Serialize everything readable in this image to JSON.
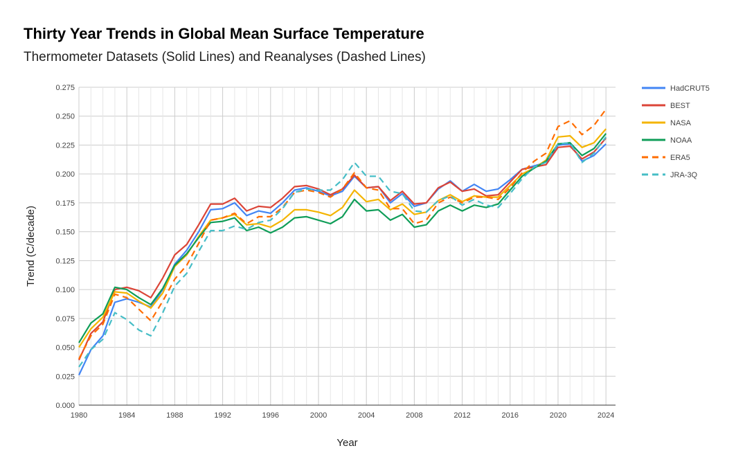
{
  "chart_data": {
    "type": "line",
    "title": "Thirty Year Trends in Global Mean Surface Temperature",
    "subtitle": "Thermometer Datasets (Solid Lines) and Reanalyses (Dashed Lines)",
    "xlabel": "Year",
    "ylabel": "Trend (C/decade)",
    "xlim": [
      1980,
      2024.8
    ],
    "ylim": [
      0,
      0.275
    ],
    "x_ticks": [
      "1980",
      "1984",
      "1988",
      "1992",
      "1996",
      "2000",
      "2004",
      "2008",
      "2012",
      "2016",
      "2020",
      "2024"
    ],
    "y_ticks": [
      "0.000",
      "0.025",
      "0.050",
      "0.075",
      "0.100",
      "0.125",
      "0.150",
      "0.175",
      "0.200",
      "0.225",
      "0.250",
      "0.275"
    ],
    "grid": true,
    "legend_position": "right",
    "x": [
      1980,
      1981,
      1982,
      1983,
      1984,
      1985,
      1986,
      1987,
      1988,
      1989,
      1990,
      1991,
      1992,
      1993,
      1994,
      1995,
      1996,
      1997,
      1998,
      1999,
      2000,
      2001,
      2002,
      2003,
      2004,
      2005,
      2006,
      2007,
      2008,
      2009,
      2010,
      2011,
      2012,
      2013,
      2014,
      2015,
      2016,
      2017,
      2018,
      2019,
      2020,
      2021,
      2022,
      2023,
      2024
    ],
    "series": [
      {
        "name": "HadCRUT5",
        "color": "#4285f4",
        "dashed": false,
        "values": [
          0.026,
          0.048,
          0.06,
          0.089,
          0.092,
          0.089,
          0.085,
          0.1,
          0.122,
          0.134,
          0.15,
          0.169,
          0.17,
          0.175,
          0.164,
          0.168,
          0.166,
          0.175,
          0.186,
          0.188,
          0.185,
          0.181,
          0.185,
          0.198,
          0.188,
          0.189,
          0.175,
          0.183,
          0.172,
          0.175,
          0.187,
          0.194,
          0.185,
          0.191,
          0.185,
          0.187,
          0.195,
          0.204,
          0.207,
          0.21,
          0.225,
          0.226,
          0.211,
          0.216,
          0.226
        ]
      },
      {
        "name": "BEST",
        "color": "#db4437",
        "dashed": false,
        "values": [
          0.039,
          0.062,
          0.072,
          0.1,
          0.102,
          0.099,
          0.093,
          0.11,
          0.13,
          0.139,
          0.156,
          0.174,
          0.174,
          0.179,
          0.168,
          0.172,
          0.171,
          0.179,
          0.189,
          0.19,
          0.187,
          0.182,
          0.187,
          0.199,
          0.188,
          0.189,
          0.177,
          0.185,
          0.174,
          0.175,
          0.188,
          0.193,
          0.185,
          0.187,
          0.181,
          0.182,
          0.193,
          0.204,
          0.206,
          0.208,
          0.223,
          0.224,
          0.213,
          0.219,
          0.231
        ]
      },
      {
        "name": "NASA",
        "color": "#f4b400",
        "dashed": false,
        "values": [
          0.05,
          0.066,
          0.076,
          0.098,
          0.097,
          0.09,
          0.084,
          0.097,
          0.12,
          0.13,
          0.146,
          0.16,
          0.162,
          0.165,
          0.156,
          0.157,
          0.154,
          0.16,
          0.169,
          0.169,
          0.167,
          0.164,
          0.171,
          0.186,
          0.176,
          0.178,
          0.169,
          0.174,
          0.165,
          0.167,
          0.177,
          0.182,
          0.176,
          0.181,
          0.18,
          0.18,
          0.19,
          0.2,
          0.205,
          0.212,
          0.232,
          0.233,
          0.223,
          0.227,
          0.239
        ]
      },
      {
        "name": "NOAA",
        "color": "#0f9d58",
        "dashed": false,
        "values": [
          0.054,
          0.071,
          0.079,
          0.102,
          0.1,
          0.093,
          0.087,
          0.101,
          0.121,
          0.131,
          0.145,
          0.158,
          0.159,
          0.162,
          0.151,
          0.154,
          0.149,
          0.154,
          0.162,
          0.163,
          0.16,
          0.157,
          0.163,
          0.178,
          0.168,
          0.169,
          0.16,
          0.165,
          0.154,
          0.156,
          0.168,
          0.173,
          0.168,
          0.173,
          0.171,
          0.174,
          0.186,
          0.198,
          0.205,
          0.211,
          0.226,
          0.227,
          0.216,
          0.222,
          0.235
        ]
      },
      {
        "name": "ERA5",
        "color": "#ff6d00",
        "dashed": true,
        "values": [
          0.04,
          0.06,
          0.07,
          0.096,
          0.093,
          0.083,
          0.073,
          0.09,
          0.109,
          0.121,
          0.14,
          0.16,
          0.162,
          0.166,
          0.157,
          0.163,
          0.163,
          0.171,
          0.184,
          0.186,
          0.184,
          0.18,
          0.187,
          0.201,
          0.188,
          0.186,
          0.17,
          0.17,
          0.157,
          0.16,
          0.175,
          0.18,
          0.175,
          0.18,
          0.18,
          0.178,
          0.188,
          0.201,
          0.211,
          0.218,
          0.241,
          0.246,
          0.234,
          0.242,
          0.256
        ]
      },
      {
        "name": "JRA-3Q",
        "color": "#46bdc6",
        "dashed": true,
        "values": [
          0.033,
          0.048,
          0.057,
          0.08,
          0.074,
          0.065,
          0.06,
          0.08,
          0.103,
          0.114,
          0.133,
          0.151,
          0.151,
          0.155,
          0.152,
          0.158,
          0.16,
          0.17,
          0.184,
          0.187,
          0.186,
          0.186,
          0.195,
          0.21,
          0.198,
          0.198,
          0.185,
          0.183,
          0.168,
          0.167,
          0.177,
          0.181,
          0.173,
          0.178,
          0.173,
          0.171,
          0.183,
          0.196,
          0.206,
          0.21,
          0.226,
          0.227,
          0.21,
          0.218,
          0.232
        ]
      }
    ]
  }
}
